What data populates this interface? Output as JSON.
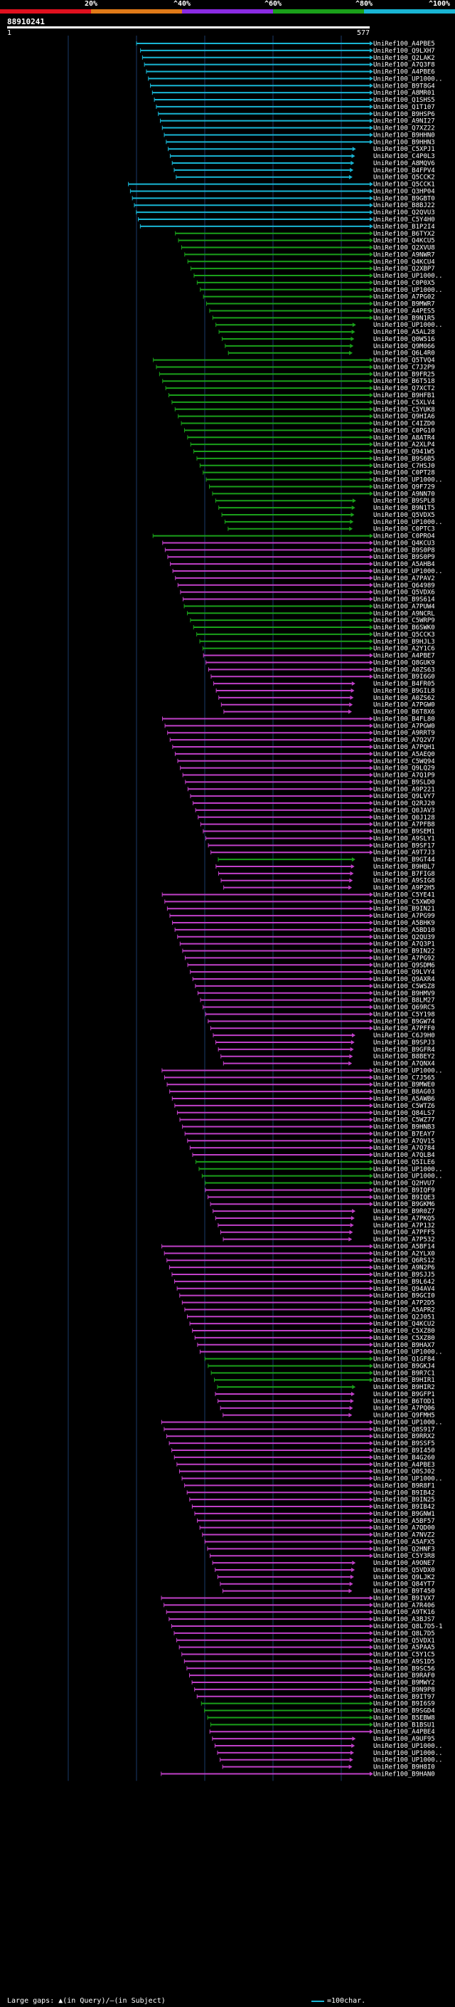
{
  "scale": {
    "labels": [
      "20%",
      "^40%",
      "^60%",
      "^80%",
      "^100%"
    ],
    "colors": [
      "#e0101e",
      "#e07a18",
      "#8a2be2",
      "#1aa01a",
      "#19b5d4"
    ]
  },
  "query": {
    "id": "88910241",
    "start": "1",
    "end": "577"
  },
  "colors": {
    "cyan": "#19b5d4",
    "green": "#1aa01a",
    "magenta": "#c040c8",
    "grid": "#1a3a6a"
  },
  "hits": [
    {
      "label": "UniRef100_A4PBE5",
      "color": "cyan"
    },
    {
      "label": "UniRef100_Q9LXH7",
      "color": "cyan"
    },
    {
      "label": "UniRef100_Q2LAK2",
      "color": "cyan"
    },
    {
      "label": "UniRef100_A7Q3F8",
      "color": "cyan"
    },
    {
      "label": "UniRef100_A4PBE6",
      "color": "cyan"
    },
    {
      "label": "UniRef100_UP1000..",
      "color": "cyan"
    },
    {
      "label": "UniRef100_B9T8G4",
      "color": "cyan"
    },
    {
      "label": "UniRef100_A8MR01",
      "color": "cyan"
    },
    {
      "label": "UniRef100_Q1SHS5",
      "color": "cyan"
    },
    {
      "label": "UniRef100_Q1T107",
      "color": "cyan"
    },
    {
      "label": "UniRef100_B9HSP6",
      "color": "cyan"
    },
    {
      "label": "UniRef100_A9NI27",
      "color": "cyan"
    },
    {
      "label": "UniRef100_Q7XZ22",
      "color": "cyan"
    },
    {
      "label": "UniRef100_B9HHN0",
      "color": "cyan"
    },
    {
      "label": "UniRef100_B9HHN3",
      "color": "cyan"
    },
    {
      "label": "UniRef100_C5XPJ1",
      "color": "cyan"
    },
    {
      "label": "UniRef100_C4P0L3",
      "color": "cyan"
    },
    {
      "label": "UniRef100_A8MQV6",
      "color": "cyan"
    },
    {
      "label": "UniRef100_B4FPV4",
      "color": "cyan"
    },
    {
      "label": "UniRef100_Q5CCK2",
      "color": "cyan"
    },
    {
      "label": "UniRef100_Q5CCK1",
      "color": "cyan"
    },
    {
      "label": "UniRef100_Q3HP04",
      "color": "cyan"
    },
    {
      "label": "UniRef100_B9GBT0",
      "color": "cyan"
    },
    {
      "label": "UniRef100_B8BJ22",
      "color": "cyan"
    },
    {
      "label": "UniRef100_Q2QVU3",
      "color": "cyan"
    },
    {
      "label": "UniRef100_C5Y4H0",
      "color": "cyan"
    },
    {
      "label": "UniRef100_B1P2I4",
      "color": "cyan"
    },
    {
      "label": "UniRef100_B6TYX2",
      "color": "green"
    },
    {
      "label": "UniRef100_Q4KCU5",
      "color": "green"
    },
    {
      "label": "UniRef100_Q2XVU8",
      "color": "green"
    },
    {
      "label": "UniRef100_A9NWR7",
      "color": "green"
    },
    {
      "label": "UniRef100_Q4KCU4",
      "color": "green"
    },
    {
      "label": "UniRef100_Q2XBP7",
      "color": "green"
    },
    {
      "label": "UniRef100_UP1000..",
      "color": "green"
    },
    {
      "label": "UniRef100_C0P0X5",
      "color": "green"
    },
    {
      "label": "UniRef100_UP1000..",
      "color": "green"
    },
    {
      "label": "UniRef100_A7PG02",
      "color": "green"
    },
    {
      "label": "UniRef100_B9MWR7",
      "color": "green"
    },
    {
      "label": "UniRef100_A4PES5",
      "color": "green"
    },
    {
      "label": "UniRef100_B9N1R5",
      "color": "green"
    },
    {
      "label": "UniRef100_UP1000..",
      "color": "green"
    },
    {
      "label": "UniRef100_A5AL28",
      "color": "green"
    },
    {
      "label": "UniRef100_Q0W516",
      "color": "green"
    },
    {
      "label": "UniRef100_Q9M066",
      "color": "green"
    },
    {
      "label": "UniRef100_Q6L4R0",
      "color": "green"
    },
    {
      "label": "UniRef100_Q5TVQ4",
      "color": "green"
    },
    {
      "label": "UniRef100_C7J2P9",
      "color": "green"
    },
    {
      "label": "UniRef100_B9FR25",
      "color": "green"
    },
    {
      "label": "UniRef100_B6T518",
      "color": "green"
    },
    {
      "label": "UniRef100_Q7XCT2",
      "color": "green"
    },
    {
      "label": "UniRef100_B9HFB1",
      "color": "green"
    },
    {
      "label": "UniRef100_C5XLV4",
      "color": "green"
    },
    {
      "label": "UniRef100_C5YUK8",
      "color": "green"
    },
    {
      "label": "UniRef100_Q9HIA6",
      "color": "green"
    },
    {
      "label": "UniRef100_C4IZD0",
      "color": "green"
    },
    {
      "label": "UniRef100_C0PG10",
      "color": "green"
    },
    {
      "label": "UniRef100_A8ATR4",
      "color": "green"
    },
    {
      "label": "UniRef100_A2XLP4",
      "color": "green"
    },
    {
      "label": "UniRef100_Q941W5",
      "color": "green"
    },
    {
      "label": "UniRef100_B9S6B5",
      "color": "green"
    },
    {
      "label": "UniRef100_C7HSJ0",
      "color": "green"
    },
    {
      "label": "UniRef100_C0PT28",
      "color": "green"
    },
    {
      "label": "UniRef100_UP1000..",
      "color": "green"
    },
    {
      "label": "UniRef100_Q9F729",
      "color": "green"
    },
    {
      "label": "UniRef100_A9NN70",
      "color": "green"
    },
    {
      "label": "UniRef100_B9SPL8",
      "color": "green"
    },
    {
      "label": "UniRef100_B9N1T5",
      "color": "green"
    },
    {
      "label": "UniRef100_Q5VDX5",
      "color": "green"
    },
    {
      "label": "UniRef100_UP1000..",
      "color": "green"
    },
    {
      "label": "UniRef100_C0PTC3",
      "color": "green"
    },
    {
      "label": "UniRef100_C0PRO4",
      "color": "green"
    },
    {
      "label": "UniRef100_Q4KCU3",
      "color": "magenta"
    },
    {
      "label": "UniRef100_B9S0P8",
      "color": "magenta"
    },
    {
      "label": "UniRef100_B9S0P9",
      "color": "magenta"
    },
    {
      "label": "UniRef100_A5AHB4",
      "color": "magenta"
    },
    {
      "label": "UniRef100_UP1000..",
      "color": "magenta"
    },
    {
      "label": "UniRef100_A7PAV2",
      "color": "magenta"
    },
    {
      "label": "UniRef100_Q64989",
      "color": "magenta"
    },
    {
      "label": "UniRef100_Q5VDX6",
      "color": "magenta"
    },
    {
      "label": "UniRef100_B9S614",
      "color": "magenta"
    },
    {
      "label": "UniRef100_A7PUW4",
      "color": "green"
    },
    {
      "label": "UniRef100_A9NCRL",
      "color": "green"
    },
    {
      "label": "UniRef100_C5WRP9",
      "color": "green"
    },
    {
      "label": "UniRef100_B6SWK0",
      "color": "green"
    },
    {
      "label": "UniRef100_Q5CCK3",
      "color": "green"
    },
    {
      "label": "UniRef100_B9HJL3",
      "color": "green"
    },
    {
      "label": "UniRef100_A2Y1C6",
      "color": "green"
    },
    {
      "label": "UniRef100_A4PBE7",
      "color": "magenta"
    },
    {
      "label": "UniRef100_Q8GUK9",
      "color": "magenta"
    },
    {
      "label": "UniRef100_A0ZS63",
      "color": "magenta"
    },
    {
      "label": "UniRef100_B9I6G0",
      "color": "magenta"
    },
    {
      "label": "UniRef100_B4FR05",
      "color": "magenta"
    },
    {
      "label": "UniRef100_B9GIL8",
      "color": "magenta"
    },
    {
      "label": "UniRef100_A0ZS62",
      "color": "magenta"
    },
    {
      "label": "UniRef100_A7PGW0",
      "color": "magenta"
    },
    {
      "label": "UniRef100_B6T8X6",
      "color": "magenta"
    },
    {
      "label": "UniRef100_B4FL80",
      "color": "magenta"
    },
    {
      "label": "UniRef100_A7PGW0",
      "color": "magenta"
    },
    {
      "label": "UniRef100_A9RRT9",
      "color": "magenta"
    },
    {
      "label": "UniRef100_A7Q2V7",
      "color": "magenta"
    },
    {
      "label": "UniRef100_A7PQH1",
      "color": "magenta"
    },
    {
      "label": "UniRef100_A5AEQ0",
      "color": "magenta"
    },
    {
      "label": "UniRef100_C5WQ94",
      "color": "magenta"
    },
    {
      "label": "UniRef100_Q9LQ29",
      "color": "magenta"
    },
    {
      "label": "UniRef100_A7Q1P9",
      "color": "magenta"
    },
    {
      "label": "UniRef100_B9SLD0",
      "color": "magenta"
    },
    {
      "label": "UniRef100_A9P221",
      "color": "magenta"
    },
    {
      "label": "UniRef100_Q9LVY7",
      "color": "magenta"
    },
    {
      "label": "UniRef100_Q2RJ20",
      "color": "magenta"
    },
    {
      "label": "UniRef100_Q0JAV3",
      "color": "magenta"
    },
    {
      "label": "UniRef100_Q0J128",
      "color": "magenta"
    },
    {
      "label": "UniRef100_A7PFB8",
      "color": "magenta"
    },
    {
      "label": "UniRef100_B9SEM1",
      "color": "magenta"
    },
    {
      "label": "UniRef100_A9SLY1",
      "color": "magenta"
    },
    {
      "label": "UniRef100_B9SF17",
      "color": "magenta"
    },
    {
      "label": "UniRef100_A9T7J3",
      "color": "magenta"
    },
    {
      "label": "UniRef100_B9GT44",
      "color": "green"
    },
    {
      "label": "UniRef100_B9HBL7",
      "color": "magenta"
    },
    {
      "label": "UniRef100_B7FIG8",
      "color": "magenta"
    },
    {
      "label": "UniRef100_A9SIG8",
      "color": "magenta"
    },
    {
      "label": "UniRef100_A9P2H5",
      "color": "magenta"
    },
    {
      "label": "UniRef100_C5YE41",
      "color": "magenta"
    },
    {
      "label": "UniRef100_C5XWD0",
      "color": "magenta"
    },
    {
      "label": "UniRef100_B9IN21",
      "color": "magenta"
    },
    {
      "label": "UniRef100_A7PG99",
      "color": "magenta"
    },
    {
      "label": "UniRef100_A5BHK9",
      "color": "magenta"
    },
    {
      "label": "UniRef100_A5BD10",
      "color": "magenta"
    },
    {
      "label": "UniRef100_Q2QU39",
      "color": "magenta"
    },
    {
      "label": "UniRef100_A7Q3P1",
      "color": "magenta"
    },
    {
      "label": "UniRef100_B9IN22",
      "color": "magenta"
    },
    {
      "label": "UniRef100_A7PG92",
      "color": "magenta"
    },
    {
      "label": "UniRef100_Q9SDM6",
      "color": "magenta"
    },
    {
      "label": "UniRef100_Q9LVY4",
      "color": "magenta"
    },
    {
      "label": "UniRef100_Q9AXR4",
      "color": "magenta"
    },
    {
      "label": "UniRef100_C5WSZ8",
      "color": "magenta"
    },
    {
      "label": "UniRef100_B9HMV9",
      "color": "magenta"
    },
    {
      "label": "UniRef100_B8LM27",
      "color": "magenta"
    },
    {
      "label": "UniRef100_Q69RC5",
      "color": "magenta"
    },
    {
      "label": "UniRef100_C5Y198",
      "color": "magenta"
    },
    {
      "label": "UniRef100_B9GW74",
      "color": "magenta"
    },
    {
      "label": "UniRef100_A7PFF0",
      "color": "magenta"
    },
    {
      "label": "UniRef100_C6J9H0",
      "color": "magenta"
    },
    {
      "label": "UniRef100_B9SPJ3",
      "color": "magenta"
    },
    {
      "label": "UniRef100_B9GFR4",
      "color": "magenta"
    },
    {
      "label": "UniRef100_B8BEY2",
      "color": "magenta"
    },
    {
      "label": "UniRef100_A7QNX4",
      "color": "magenta"
    },
    {
      "label": "UniRef100_UP1000..",
      "color": "magenta"
    },
    {
      "label": "UniRef100_C7J565",
      "color": "magenta"
    },
    {
      "label": "UniRef100_B9MWE0",
      "color": "magenta"
    },
    {
      "label": "UniRef100_B8AG03",
      "color": "magenta"
    },
    {
      "label": "UniRef100_A5AWB6",
      "color": "magenta"
    },
    {
      "label": "UniRef100_C5WTZ6",
      "color": "magenta"
    },
    {
      "label": "UniRef100_Q84LS7",
      "color": "magenta"
    },
    {
      "label": "UniRef100_C5WZ77",
      "color": "magenta"
    },
    {
      "label": "UniRef100_B9HNB3",
      "color": "magenta"
    },
    {
      "label": "UniRef100_B7EAY7",
      "color": "magenta"
    },
    {
      "label": "UniRef100_A7QV15",
      "color": "magenta"
    },
    {
      "label": "UniRef100_A7Q784",
      "color": "magenta"
    },
    {
      "label": "UniRef100_A7QLB4",
      "color": "magenta"
    },
    {
      "label": "UniRef100_Q5ILE6",
      "color": "green"
    },
    {
      "label": "UniRef100_UP1000..",
      "color": "green"
    },
    {
      "label": "UniRef100_UP1000..",
      "color": "green"
    },
    {
      "label": "UniRef100_Q2HVU7",
      "color": "green"
    },
    {
      "label": "UniRef100_B9IQF9",
      "color": "magenta"
    },
    {
      "label": "UniRef100_B9IQE3",
      "color": "magenta"
    },
    {
      "label": "UniRef100_B9GKM6",
      "color": "magenta"
    },
    {
      "label": "UniRef100_B9R0Z7",
      "color": "magenta"
    },
    {
      "label": "UniRef100_A7PKQ5",
      "color": "magenta"
    },
    {
      "label": "UniRef100_A7P132",
      "color": "magenta"
    },
    {
      "label": "UniRef100_A7PFF5",
      "color": "magenta"
    },
    {
      "label": "UniRef100_A7P532",
      "color": "magenta"
    },
    {
      "label": "UniRef100_A5BF14",
      "color": "magenta"
    },
    {
      "label": "UniRef100_A2YLX0",
      "color": "magenta"
    },
    {
      "label": "UniRef100_Q6RS12",
      "color": "magenta"
    },
    {
      "label": "UniRef100_A9N2P6",
      "color": "magenta"
    },
    {
      "label": "UniRef100_B9SJJ5",
      "color": "magenta"
    },
    {
      "label": "UniRef100_B9L642",
      "color": "magenta"
    },
    {
      "label": "UniRef100_Q94AV4",
      "color": "magenta"
    },
    {
      "label": "UniRef100_B9GCI0",
      "color": "magenta"
    },
    {
      "label": "UniRef100_A7P2D5",
      "color": "magenta"
    },
    {
      "label": "UniRef100_A5APR2",
      "color": "magenta"
    },
    {
      "label": "UniRef100_Q2J051",
      "color": "magenta"
    },
    {
      "label": "UniRef100_Q4KCU2",
      "color": "magenta"
    },
    {
      "label": "UniRef100_C5XZ80",
      "color": "magenta"
    },
    {
      "label": "UniRef100_C5XZ80",
      "color": "magenta"
    },
    {
      "label": "UniRef100_B9HAX7",
      "color": "magenta"
    },
    {
      "label": "UniRef100_UP1000..",
      "color": "magenta"
    },
    {
      "label": "UniRef100_Q1GF84",
      "color": "green"
    },
    {
      "label": "UniRef100_B9GKJ4",
      "color": "green"
    },
    {
      "label": "UniRef100_B9R7C1",
      "color": "green"
    },
    {
      "label": "UniRef100_B9HIR1",
      "color": "green"
    },
    {
      "label": "UniRef100_B9HIR2",
      "color": "green"
    },
    {
      "label": "UniRef100_B9GFP1",
      "color": "magenta"
    },
    {
      "label": "UniRef100_B6TOD1",
      "color": "magenta"
    },
    {
      "label": "UniRef100_A7PQ06",
      "color": "magenta"
    },
    {
      "label": "UniRef100_Q9FMH5",
      "color": "magenta"
    },
    {
      "label": "UniRef100_UP1000..",
      "color": "magenta"
    },
    {
      "label": "UniRef100_Q8S917",
      "color": "magenta"
    },
    {
      "label": "UniRef100_B9RRX2",
      "color": "magenta"
    },
    {
      "label": "UniRef100_B9SSF5",
      "color": "magenta"
    },
    {
      "label": "UniRef100_B9I450",
      "color": "magenta"
    },
    {
      "label": "UniRef100_B4G260",
      "color": "magenta"
    },
    {
      "label": "UniRef100_A4PBE3",
      "color": "magenta"
    },
    {
      "label": "UniRef100_Q0SJ02",
      "color": "magenta"
    },
    {
      "label": "UniRef100_UP1000..",
      "color": "magenta"
    },
    {
      "label": "UniRef100_B9R8F1",
      "color": "magenta"
    },
    {
      "label": "UniRef100_B9IB42",
      "color": "magenta"
    },
    {
      "label": "UniRef100_B9IN25",
      "color": "magenta"
    },
    {
      "label": "UniRef100_B9IB42",
      "color": "magenta"
    },
    {
      "label": "UniRef100_B9GNW1",
      "color": "magenta"
    },
    {
      "label": "UniRef100_A5BF57",
      "color": "magenta"
    },
    {
      "label": "UniRef100_A7QD00",
      "color": "magenta"
    },
    {
      "label": "UniRef100_A7NVZ2",
      "color": "magenta"
    },
    {
      "label": "UniRef100_A5AFX5",
      "color": "magenta"
    },
    {
      "label": "UniRef100_Q2HNF3",
      "color": "magenta"
    },
    {
      "label": "UniRef100_C5Y3R8",
      "color": "magenta"
    },
    {
      "label": "UniRef100_A9ONE7",
      "color": "magenta"
    },
    {
      "label": "UniRef100_Q5VDX0",
      "color": "magenta"
    },
    {
      "label": "UniRef100_Q9LJK2",
      "color": "magenta"
    },
    {
      "label": "UniRef100_Q84YT7",
      "color": "magenta"
    },
    {
      "label": "UniRef100_B9T450",
      "color": "magenta"
    },
    {
      "label": "UniRef100_B9IVX7",
      "color": "magenta"
    },
    {
      "label": "UniRef100_A7R406",
      "color": "magenta"
    },
    {
      "label": "UniRef100_A9TK16",
      "color": "magenta"
    },
    {
      "label": "UniRef100_A3BJS7",
      "color": "magenta"
    },
    {
      "label": "UniRef100_Q8L7D5-1",
      "color": "magenta"
    },
    {
      "label": "UniRef100_Q8L7D5",
      "color": "magenta"
    },
    {
      "label": "UniRef100_Q5VDX1",
      "color": "magenta"
    },
    {
      "label": "UniRef100_A5PAA5",
      "color": "magenta"
    },
    {
      "label": "UniRef100_C5Y1C5",
      "color": "magenta"
    },
    {
      "label": "UniRef100_A9S1D5",
      "color": "magenta"
    },
    {
      "label": "UniRef100_B9SC56",
      "color": "magenta"
    },
    {
      "label": "UniRef100_B9RAF0",
      "color": "magenta"
    },
    {
      "label": "UniRef100_B9MWY2",
      "color": "magenta"
    },
    {
      "label": "UniRef100_B9N9P8",
      "color": "magenta"
    },
    {
      "label": "UniRef100_B9IT97",
      "color": "magenta"
    },
    {
      "label": "UniRef100_B9I6S9",
      "color": "green"
    },
    {
      "label": "UniRef100_B9SGD4",
      "color": "green"
    },
    {
      "label": "UniRef100_B5EBW8",
      "color": "green"
    },
    {
      "label": "UniRef100_B1BSU1",
      "color": "green"
    },
    {
      "label": "UniRef100_A4PBE4",
      "color": "magenta"
    },
    {
      "label": "UniRef100_A9UF95",
      "color": "magenta"
    },
    {
      "label": "UniRef100_UP1000..",
      "color": "magenta"
    },
    {
      "label": "UniRef100_UP1000..",
      "color": "magenta"
    },
    {
      "label": "UniRef100_UP1000..",
      "color": "magenta"
    },
    {
      "label": "UniRef100_B9H8I0",
      "color": "magenta"
    },
    {
      "label": "UniRef100_B9HAN0",
      "color": "magenta"
    }
  ],
  "footer": {
    "legend_text": "Large gaps: ▲(in Query)/—(in Subject)",
    "unit_label": "=100char."
  }
}
